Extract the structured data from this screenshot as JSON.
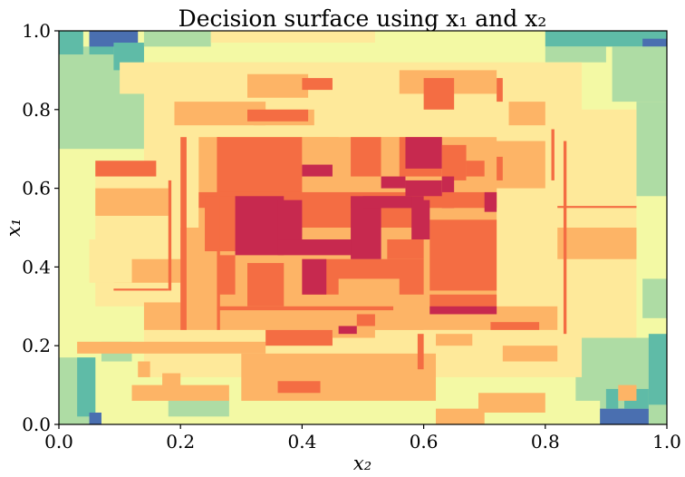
{
  "chart_data": {
    "type": "heatmap",
    "title": "Decision surface using x₁ and x₂",
    "xlabel": "x₂",
    "ylabel": "x₁",
    "xlim": [
      0.0,
      1.0
    ],
    "ylim": [
      0.0,
      1.0
    ],
    "grid": false,
    "colormap": "Spectral",
    "xticks": [
      "0.0",
      "0.2",
      "0.4",
      "0.6",
      "0.8",
      "1.0"
    ],
    "yticks": [
      "0.0",
      "0.2",
      "0.4",
      "0.6",
      "0.8",
      "1.0"
    ],
    "regions": [
      {
        "x0": 0.0,
        "x1": 1.0,
        "y0": 0.0,
        "y1": 1.0,
        "c": "#f3f9a4"
      },
      {
        "x0": 0.0,
        "x1": 0.14,
        "y0": 0.7,
        "y1": 0.96,
        "c": "#aedca4"
      },
      {
        "x0": 0.0,
        "x1": 0.04,
        "y0": 0.94,
        "y1": 1.0,
        "c": "#5fbba7"
      },
      {
        "x0": 0.05,
        "x1": 0.09,
        "y0": 0.94,
        "y1": 1.0,
        "c": "#5fbba7"
      },
      {
        "x0": 0.05,
        "x1": 0.13,
        "y0": 0.96,
        "y1": 1.0,
        "c": "#4a6fb0"
      },
      {
        "x0": 0.09,
        "x1": 0.14,
        "y0": 0.9,
        "y1": 0.97,
        "c": "#5fbba7"
      },
      {
        "x0": 0.14,
        "x1": 0.25,
        "y0": 0.96,
        "y1": 1.0,
        "c": "#aedca4"
      },
      {
        "x0": 0.25,
        "x1": 0.52,
        "y0": 0.97,
        "y1": 1.0,
        "c": "#fee99a"
      },
      {
        "x0": 0.8,
        "x1": 1.0,
        "y0": 0.96,
        "y1": 1.0,
        "c": "#5fbba7"
      },
      {
        "x0": 0.96,
        "x1": 1.0,
        "y0": 0.96,
        "y1": 0.98,
        "c": "#4a6fb0"
      },
      {
        "x0": 0.8,
        "x1": 0.9,
        "y0": 0.92,
        "y1": 0.96,
        "c": "#aedca4"
      },
      {
        "x0": 0.91,
        "x1": 1.0,
        "y0": 0.82,
        "y1": 0.96,
        "c": "#aedca4"
      },
      {
        "x0": 0.95,
        "x1": 1.0,
        "y0": 0.58,
        "y1": 0.82,
        "c": "#aedca4"
      },
      {
        "x0": 0.0,
        "x1": 0.06,
        "y0": 0.0,
        "y1": 0.17,
        "c": "#aedca4"
      },
      {
        "x0": 0.03,
        "x1": 0.06,
        "y0": 0.02,
        "y1": 0.17,
        "c": "#5fbba7"
      },
      {
        "x0": 0.05,
        "x1": 0.07,
        "y0": 0.0,
        "y1": 0.03,
        "c": "#4a6fb0"
      },
      {
        "x0": 0.07,
        "x1": 0.12,
        "y0": 0.16,
        "y1": 0.21,
        "c": "#aedca4"
      },
      {
        "x0": 0.18,
        "x1": 0.28,
        "y0": 0.02,
        "y1": 0.07,
        "c": "#aedca4"
      },
      {
        "x0": 0.85,
        "x1": 1.0,
        "y0": 0.06,
        "y1": 0.22,
        "c": "#aedca4"
      },
      {
        "x0": 0.89,
        "x1": 1.0,
        "y0": 0.0,
        "y1": 0.09,
        "c": "#aedca4"
      },
      {
        "x0": 0.89,
        "x1": 0.97,
        "y0": 0.0,
        "y1": 0.04,
        "c": "#4a6fb0"
      },
      {
        "x0": 0.9,
        "x1": 0.92,
        "y0": 0.04,
        "y1": 0.09,
        "c": "#5fbba7"
      },
      {
        "x0": 0.93,
        "x1": 0.97,
        "y0": 0.04,
        "y1": 0.09,
        "c": "#5fbba7"
      },
      {
        "x0": 0.97,
        "x1": 1.0,
        "y0": 0.05,
        "y1": 0.23,
        "c": "#5fbba7"
      },
      {
        "x0": 0.96,
        "x1": 1.0,
        "y0": 0.27,
        "y1": 0.37,
        "c": "#aedca4"
      },
      {
        "x0": 0.14,
        "x1": 0.86,
        "y0": 0.12,
        "y1": 0.92,
        "c": "#fee99a"
      },
      {
        "x0": 0.06,
        "x1": 0.18,
        "y0": 0.3,
        "y1": 0.66,
        "c": "#fee99a"
      },
      {
        "x0": 0.8,
        "x1": 0.95,
        "y0": 0.22,
        "y1": 0.8,
        "c": "#fee99a"
      },
      {
        "x0": 0.1,
        "x1": 0.4,
        "y0": 0.84,
        "y1": 0.92,
        "c": "#fee99a"
      },
      {
        "x0": 0.19,
        "x1": 0.34,
        "y0": 0.76,
        "y1": 0.82,
        "c": "#fdb466"
      },
      {
        "x0": 0.31,
        "x1": 0.41,
        "y0": 0.83,
        "y1": 0.89,
        "c": "#fdb466"
      },
      {
        "x0": 0.56,
        "x1": 0.72,
        "y0": 0.84,
        "y1": 0.9,
        "c": "#fdb466"
      },
      {
        "x0": 0.74,
        "x1": 0.8,
        "y0": 0.76,
        "y1": 0.82,
        "c": "#fdb466"
      },
      {
        "x0": 0.65,
        "x1": 0.8,
        "y0": 0.6,
        "y1": 0.72,
        "c": "#fdb466"
      },
      {
        "x0": 0.06,
        "x1": 0.18,
        "y0": 0.53,
        "y1": 0.6,
        "c": "#fdb466"
      },
      {
        "x0": 0.09,
        "x1": 0.21,
        "y0": 0.36,
        "y1": 0.42,
        "c": "#fdb466"
      },
      {
        "x0": 0.14,
        "x1": 0.6,
        "y0": 0.24,
        "y1": 0.31,
        "c": "#fdb466"
      },
      {
        "x0": 0.52,
        "x1": 0.82,
        "y0": 0.24,
        "y1": 0.3,
        "c": "#fdb466"
      },
      {
        "x0": 0.3,
        "x1": 0.62,
        "y0": 0.06,
        "y1": 0.18,
        "c": "#fdb466"
      },
      {
        "x0": 0.2,
        "x1": 0.28,
        "y0": 0.3,
        "y1": 0.5,
        "c": "#fdb466"
      },
      {
        "x0": 0.82,
        "x1": 0.95,
        "y0": 0.42,
        "y1": 0.5,
        "c": "#fdb466"
      },
      {
        "x0": 0.32,
        "x1": 0.42,
        "y0": 0.76,
        "y1": 0.8,
        "c": "#fdb466"
      },
      {
        "x0": 0.23,
        "x1": 0.72,
        "y0": 0.26,
        "y1": 0.73,
        "c": "#fdb466"
      },
      {
        "x0": 0.26,
        "x1": 0.4,
        "y0": 0.57,
        "y1": 0.73,
        "c": "#f46d43"
      },
      {
        "x0": 0.4,
        "x1": 0.46,
        "y0": 0.66,
        "y1": 0.73,
        "c": "#fdb466"
      },
      {
        "x0": 0.48,
        "x1": 0.53,
        "y0": 0.63,
        "y1": 0.73,
        "c": "#f46d43"
      },
      {
        "x0": 0.53,
        "x1": 0.56,
        "y0": 0.55,
        "y1": 0.73,
        "c": "#fdb466"
      },
      {
        "x0": 0.56,
        "x1": 0.63,
        "y0": 0.63,
        "y1": 0.73,
        "c": "#f46d43"
      },
      {
        "x0": 0.57,
        "x1": 0.63,
        "y0": 0.65,
        "y1": 0.73,
        "c": "#c7294f"
      },
      {
        "x0": 0.63,
        "x1": 0.67,
        "y0": 0.62,
        "y1": 0.71,
        "c": "#f46d43"
      },
      {
        "x0": 0.63,
        "x1": 0.65,
        "y0": 0.55,
        "y1": 0.63,
        "c": "#c7294f"
      },
      {
        "x0": 0.67,
        "x1": 0.72,
        "y0": 0.55,
        "y1": 0.66,
        "c": "#fdb466"
      },
      {
        "x0": 0.67,
        "x1": 0.7,
        "y0": 0.63,
        "y1": 0.67,
        "c": "#f46d43"
      },
      {
        "x0": 0.06,
        "x1": 0.16,
        "y0": 0.63,
        "y1": 0.67,
        "c": "#f46d43"
      },
      {
        "x0": 0.31,
        "x1": 0.41,
        "y0": 0.77,
        "y1": 0.8,
        "c": "#f46d43"
      },
      {
        "x0": 0.4,
        "x1": 0.45,
        "y0": 0.85,
        "y1": 0.88,
        "c": "#f46d43"
      },
      {
        "x0": 0.6,
        "x1": 0.65,
        "y0": 0.8,
        "y1": 0.88,
        "c": "#f46d43"
      },
      {
        "x0": 0.23,
        "x1": 0.72,
        "y0": 0.55,
        "y1": 0.59,
        "c": "#f46d43"
      },
      {
        "x0": 0.23,
        "x1": 0.33,
        "y0": 0.43,
        "y1": 0.55,
        "c": "#fdb466"
      },
      {
        "x0": 0.24,
        "x1": 0.32,
        "y0": 0.44,
        "y1": 0.58,
        "c": "#f46d43"
      },
      {
        "x0": 0.29,
        "x1": 0.4,
        "y0": 0.48,
        "y1": 0.55,
        "c": "#f46d43"
      },
      {
        "x0": 0.4,
        "x1": 0.6,
        "y0": 0.5,
        "y1": 0.57,
        "c": "#f46d43"
      },
      {
        "x0": 0.48,
        "x1": 0.6,
        "y0": 0.55,
        "y1": 0.58,
        "c": "#c7294f"
      },
      {
        "x0": 0.61,
        "x1": 0.72,
        "y0": 0.34,
        "y1": 0.52,
        "c": "#f46d43"
      },
      {
        "x0": 0.23,
        "x1": 0.4,
        "y0": 0.3,
        "y1": 0.43,
        "c": "#fdb466"
      },
      {
        "x0": 0.26,
        "x1": 0.29,
        "y0": 0.33,
        "y1": 0.43,
        "c": "#f46d43"
      },
      {
        "x0": 0.31,
        "x1": 0.37,
        "y0": 0.3,
        "y1": 0.41,
        "c": "#f46d43"
      },
      {
        "x0": 0.4,
        "x1": 0.6,
        "y0": 0.33,
        "y1": 0.42,
        "c": "#f46d43"
      },
      {
        "x0": 0.46,
        "x1": 0.56,
        "y0": 0.31,
        "y1": 0.37,
        "c": "#fdb466"
      },
      {
        "x0": 0.54,
        "x1": 0.6,
        "y0": 0.42,
        "y1": 0.47,
        "c": "#f46d43"
      },
      {
        "x0": 0.61,
        "x1": 0.72,
        "y0": 0.28,
        "y1": 0.33,
        "c": "#f46d43"
      },
      {
        "x0": 0.26,
        "x1": 0.55,
        "y0": 0.29,
        "y1": 0.3,
        "c": "#f46d43"
      },
      {
        "x0": 0.29,
        "x1": 0.37,
        "y0": 0.43,
        "y1": 0.58,
        "c": "#c7294f"
      },
      {
        "x0": 0.36,
        "x1": 0.4,
        "y0": 0.44,
        "y1": 0.57,
        "c": "#c7294f"
      },
      {
        "x0": 0.36,
        "x1": 0.5,
        "y0": 0.43,
        "y1": 0.47,
        "c": "#c7294f"
      },
      {
        "x0": 0.48,
        "x1": 0.53,
        "y0": 0.42,
        "y1": 0.57,
        "c": "#c7294f"
      },
      {
        "x0": 0.5,
        "x1": 0.58,
        "y0": 0.55,
        "y1": 0.58,
        "c": "#c7294f"
      },
      {
        "x0": 0.58,
        "x1": 0.61,
        "y0": 0.47,
        "y1": 0.57,
        "c": "#c7294f"
      },
      {
        "x0": 0.4,
        "x1": 0.44,
        "y0": 0.33,
        "y1": 0.42,
        "c": "#c7294f"
      },
      {
        "x0": 0.57,
        "x1": 0.63,
        "y0": 0.58,
        "y1": 0.62,
        "c": "#c7294f"
      },
      {
        "x0": 0.61,
        "x1": 0.72,
        "y0": 0.28,
        "y1": 0.3,
        "c": "#c7294f"
      },
      {
        "x0": 0.7,
        "x1": 0.72,
        "y0": 0.54,
        "y1": 0.59,
        "c": "#c7294f"
      },
      {
        "x0": 0.4,
        "x1": 0.45,
        "y0": 0.63,
        "y1": 0.66,
        "c": "#c7294f"
      },
      {
        "x0": 0.53,
        "x1": 0.57,
        "y0": 0.6,
        "y1": 0.63,
        "c": "#c7294f"
      },
      {
        "x0": 0.03,
        "x1": 0.34,
        "y0": 0.18,
        "y1": 0.21,
        "c": "#fdb466"
      },
      {
        "x0": 0.34,
        "x1": 0.45,
        "y0": 0.2,
        "y1": 0.24,
        "c": "#f46d43"
      },
      {
        "x0": 0.45,
        "x1": 0.52,
        "y0": 0.22,
        "y1": 0.26,
        "c": "#fdb466"
      },
      {
        "x0": 0.62,
        "x1": 0.68,
        "y0": 0.2,
        "y1": 0.23,
        "c": "#fdb466"
      },
      {
        "x0": 0.73,
        "x1": 0.82,
        "y0": 0.16,
        "y1": 0.2,
        "c": "#fdb466"
      },
      {
        "x0": 0.12,
        "x1": 0.28,
        "y0": 0.06,
        "y1": 0.1,
        "c": "#fdb466"
      },
      {
        "x0": 0.13,
        "x1": 0.15,
        "y0": 0.12,
        "y1": 0.16,
        "c": "#fdb466"
      },
      {
        "x0": 0.17,
        "x1": 0.2,
        "y0": 0.09,
        "y1": 0.13,
        "c": "#fdb466"
      },
      {
        "x0": 0.36,
        "x1": 0.43,
        "y0": 0.08,
        "y1": 0.11,
        "c": "#f46d43"
      },
      {
        "x0": 0.45,
        "x1": 0.5,
        "y0": 0.09,
        "y1": 0.13,
        "c": "#fdb466"
      },
      {
        "x0": 0.69,
        "x1": 0.8,
        "y0": 0.03,
        "y1": 0.08,
        "c": "#fdb466"
      },
      {
        "x0": 0.62,
        "x1": 0.7,
        "y0": 0.0,
        "y1": 0.04,
        "c": "#fdb466"
      },
      {
        "x0": 0.05,
        "x1": 0.12,
        "y0": 0.36,
        "y1": 0.47,
        "c": "#fee99a"
      },
      {
        "x0": 0.46,
        "x1": 0.49,
        "y0": 0.23,
        "y1": 0.25,
        "c": "#c7294f"
      },
      {
        "x0": 0.49,
        "x1": 0.52,
        "y0": 0.25,
        "y1": 0.28,
        "c": "#f46d43"
      },
      {
        "x0": 0.71,
        "x1": 0.79,
        "y0": 0.24,
        "y1": 0.26,
        "c": "#f46d43"
      },
      {
        "x0": 0.92,
        "x1": 0.95,
        "y0": 0.06,
        "y1": 0.1,
        "c": "#fdb466"
      },
      {
        "x0": 0.2,
        "x1": 0.21,
        "y0": 0.24,
        "y1": 0.73,
        "c": "#f46d43"
      },
      {
        "x0": 0.26,
        "x1": 0.265,
        "y0": 0.24,
        "y1": 0.73,
        "c": "#f46d43"
      },
      {
        "x0": 0.18,
        "x1": 0.185,
        "y0": 0.34,
        "y1": 0.62,
        "c": "#f46d43"
      },
      {
        "x0": 0.83,
        "x1": 0.835,
        "y0": 0.23,
        "y1": 0.72,
        "c": "#f46d43"
      },
      {
        "x0": 0.81,
        "x1": 0.815,
        "y0": 0.62,
        "y1": 0.75,
        "c": "#f46d43"
      },
      {
        "x0": 0.72,
        "x1": 0.73,
        "y0": 0.62,
        "y1": 0.68,
        "c": "#f46d43"
      },
      {
        "x0": 0.59,
        "x1": 0.6,
        "y0": 0.14,
        "y1": 0.23,
        "c": "#f46d43"
      },
      {
        "x0": 0.72,
        "x1": 0.73,
        "y0": 0.82,
        "y1": 0.88,
        "c": "#f46d43"
      },
      {
        "x0": 0.09,
        "x1": 0.18,
        "y0": 0.34,
        "y1": 0.345,
        "c": "#f46d43"
      },
      {
        "x0": 0.82,
        "x1": 0.95,
        "y0": 0.55,
        "y1": 0.555,
        "c": "#f46d43"
      }
    ]
  }
}
